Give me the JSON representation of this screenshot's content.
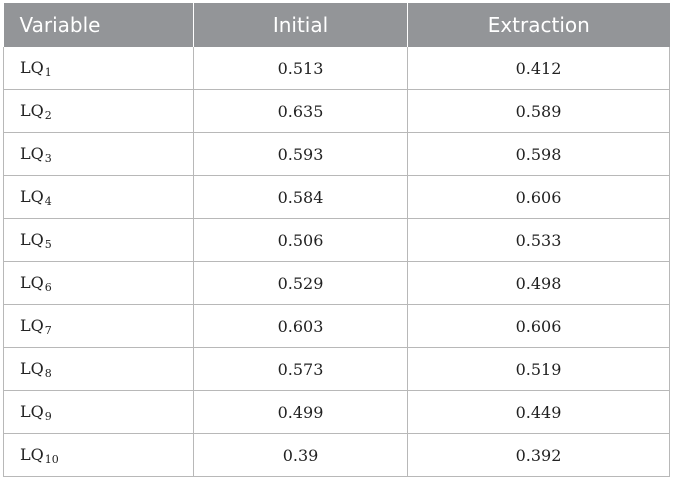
{
  "table": {
    "headers": [
      "Variable",
      "Initial",
      "Extraction"
    ],
    "rows": [
      {
        "base": "LQ",
        "sub": "1",
        "initial": "0.513",
        "extraction": "0.412"
      },
      {
        "base": "LQ",
        "sub": "2",
        "initial": "0.635",
        "extraction": "0.589"
      },
      {
        "base": "LQ",
        "sub": "3",
        "initial": "0.593",
        "extraction": "0.598"
      },
      {
        "base": "LQ",
        "sub": "4",
        "initial": "0.584",
        "extraction": "0.606"
      },
      {
        "base": "LQ",
        "sub": "5",
        "initial": "0.506",
        "extraction": "0.533"
      },
      {
        "base": "LQ",
        "sub": "6",
        "initial": "0.529",
        "extraction": "0.498"
      },
      {
        "base": "LQ",
        "sub": "7",
        "initial": "0.603",
        "extraction": "0.606"
      },
      {
        "base": "LQ",
        "sub": "8",
        "initial": "0.573",
        "extraction": "0.519"
      },
      {
        "base": "LQ",
        "sub": "9",
        "initial": "0.499",
        "extraction": "0.449"
      },
      {
        "base": "LQ",
        "sub": "10",
        "initial": "0.39",
        "extraction": "0.392"
      }
    ]
  },
  "colors": {
    "header_bg": "#939598",
    "header_text": "#ffffff",
    "grid": "#b8b8b8"
  }
}
